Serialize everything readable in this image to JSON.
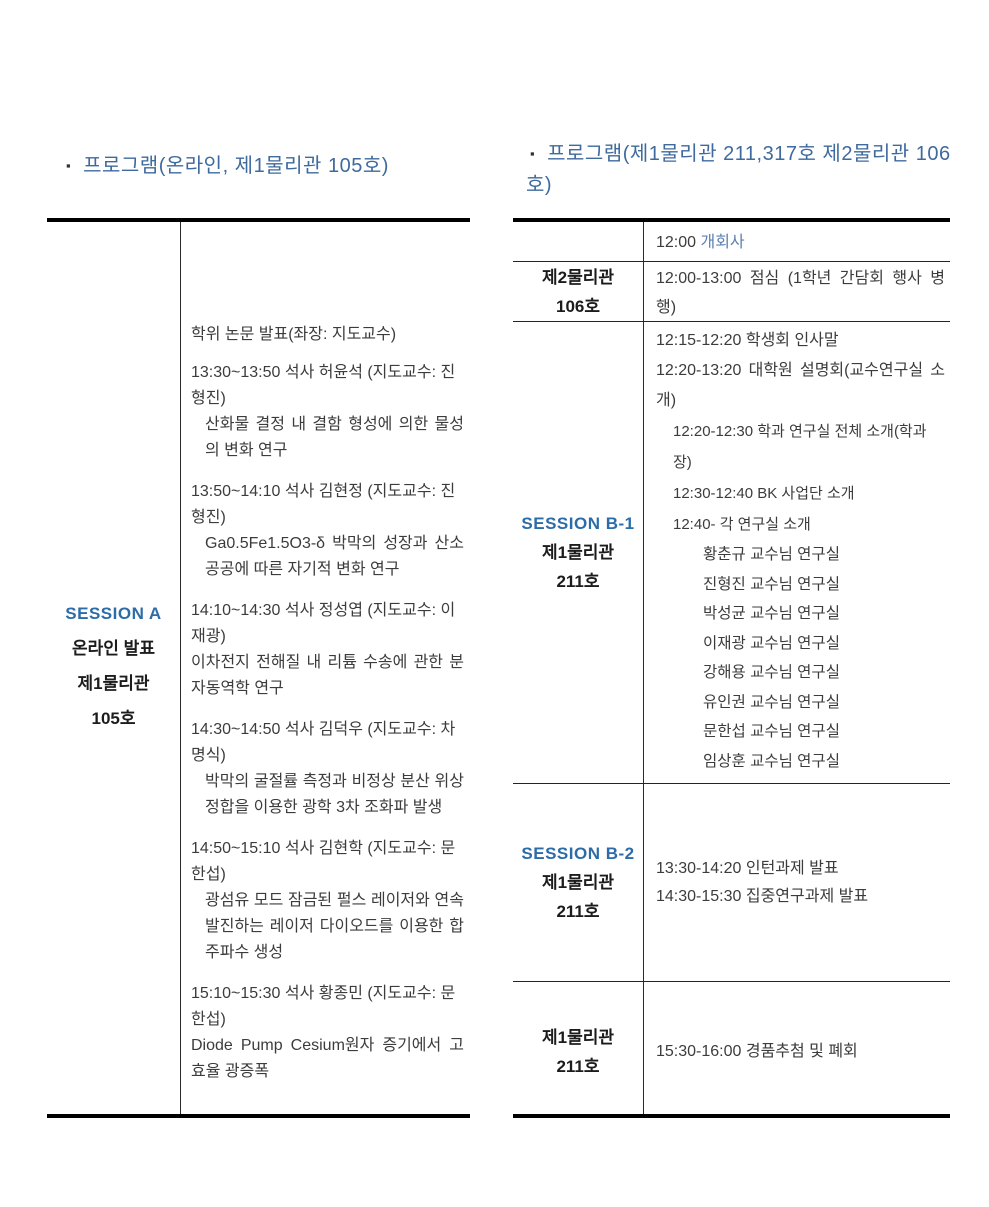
{
  "icons": {
    "bullet": "▪"
  },
  "headers": {
    "left": "프로그램(온라인, 제1물리관  105호)",
    "right_line": "프로그램(제1물리관  211,317호  제2물리관 106호)"
  },
  "colors": {
    "header_blue": "#3e6a9e",
    "session_blue": "#2c6ca8",
    "link_blue": "#5c7fb0",
    "body_text": "#3c3c3c",
    "border": "#000000"
  },
  "left_table": {
    "label": {
      "session": "SESSION A",
      "line1": "온라인 발표",
      "line2": "제1물리관",
      "line3": "105호"
    },
    "intro": "학위 논문 발표(좌장: 지도교수)",
    "talks": [
      {
        "head": "13:30~13:50 석사 허윤석 (지도교수: 진형진)",
        "body": "산화물 결정 내 결함 형성에 의한 물성의 변화 연구"
      },
      {
        "head": "13:50~14:10 석사 김현정 (지도교수: 진형진)",
        "body": "Ga0.5Fe1.5O3-δ  박막의 성장과 산소공공에 따른 자기적 변화 연구"
      },
      {
        "head": "14:10~14:30 석사 정성엽 (지도교수: 이재광)",
        "body": "이차전지 전해질 내 리튬 수송에 관한 분자동역학 연구"
      },
      {
        "head": "14:30~14:50 석사 김덕우 (지도교수: 차명식)",
        "body": "박막의 굴절률 측정과 비정상 분산 위상정합을 이용한 광학 3차 조화파 발생"
      },
      {
        "head": "14:50~15:10 석사 김현학 (지도교수: 문한섭)",
        "body": "광섬유 모드 잠금된 펄스 레이저와 연속 발진하는 레이저 다이오드를 이용한 합주파수 생성"
      },
      {
        "head": "15:10~15:30 석사 황종민 (지도교수: 문한섭)",
        "body": "Diode Pump Cesium원자 증기에서 고효율 광증폭"
      }
    ]
  },
  "right_table": {
    "row1": {
      "time": "12:00 ",
      "title": "개회사"
    },
    "row2": {
      "building": "제2물리관",
      "room": "106호",
      "text": "12:00-13:00 점심 (1학년 간담회 행사 병행)"
    },
    "row3": {
      "session": "SESSION B-1",
      "building": "제1물리관",
      "room": "211호",
      "line1": "12:15-12:20 학생회 인사말",
      "line2": "12:20-13:20 대학원 설명회(교수연구실 소개)",
      "sub1": "12:20-12:30 학과 연구실 전체 소개(학과장)",
      "sub2": "12:30-12:40 BK 사업단 소개",
      "sub3": "12:40- 각 연구실 소개",
      "labs": [
        "황춘규 교수님 연구실",
        "진형진 교수님 연구실",
        "박성균 교수님 연구실",
        "이재광 교수님 연구실",
        "강해용 교수님 연구실",
        "유인권 교수님 연구실",
        "문한섭 교수님 연구실",
        "임상훈 교수님 연구실"
      ]
    },
    "row4": {
      "session": "SESSION B-2",
      "building": "제1물리관",
      "room": "211호",
      "line1": "13:30-14:20 인턴과제 발표",
      "line2": "14:30-15:30 집중연구과제 발표"
    },
    "row5": {
      "building": "제1물리관",
      "room": "211호",
      "line": "15:30-16:00 경품추첨 및 폐회"
    }
  }
}
